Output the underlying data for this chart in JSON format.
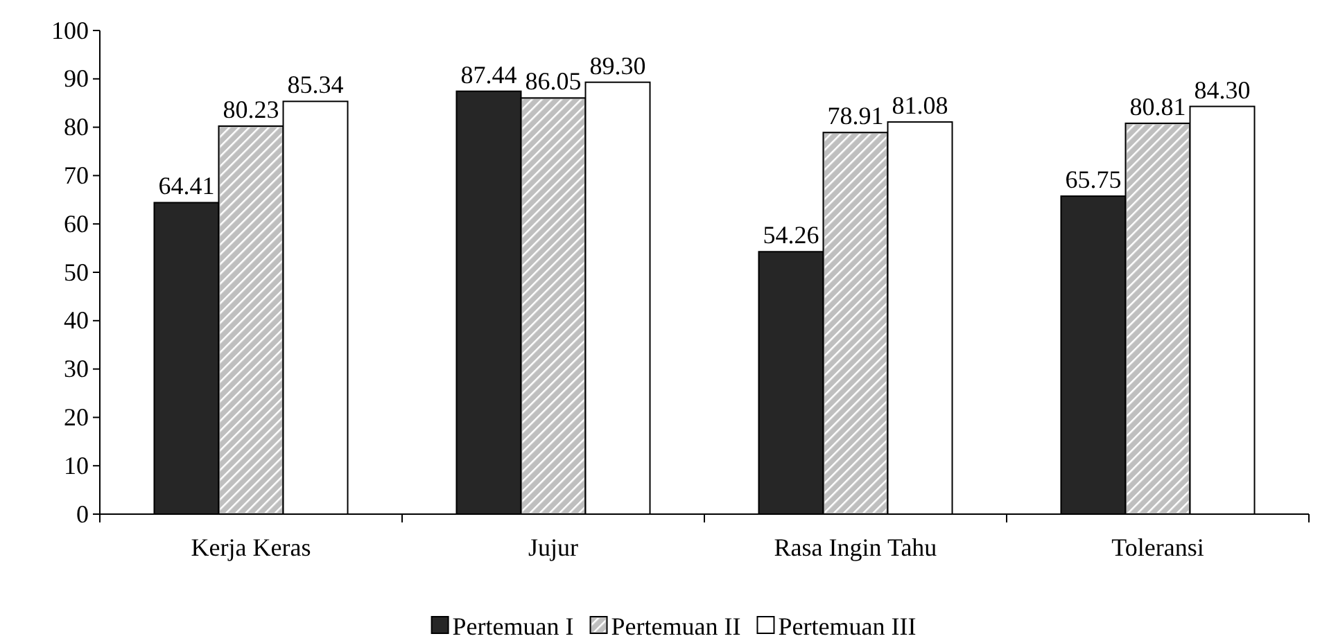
{
  "chart_data": {
    "type": "bar",
    "categories": [
      "Kerja Keras",
      "Jujur",
      "Rasa Ingin Tahu",
      "Toleransi"
    ],
    "series": [
      {
        "name": "Pertemuan I",
        "color": "#262626",
        "values": [
          64.41,
          87.44,
          54.26,
          65.75
        ]
      },
      {
        "name": "Pertemuan II",
        "color": "#bfbfbf",
        "values": [
          80.23,
          86.05,
          78.91,
          80.81
        ]
      },
      {
        "name": "Pertemuan III",
        "color": "#ffffff",
        "values": [
          85.34,
          89.3,
          81.08,
          84.3
        ]
      }
    ],
    "value_labels": [
      [
        "64.41",
        "87.44",
        "54.26",
        "65.75"
      ],
      [
        "80.23",
        "86.05",
        "78.91",
        "80.81"
      ],
      [
        "85.34",
        "89.30",
        "81.08",
        "84.30"
      ]
    ],
    "ylim": [
      0,
      100
    ],
    "yticks": [
      0,
      10,
      20,
      30,
      40,
      50,
      60,
      70,
      80,
      90,
      100
    ],
    "grid": false,
    "legend": "bottom"
  }
}
